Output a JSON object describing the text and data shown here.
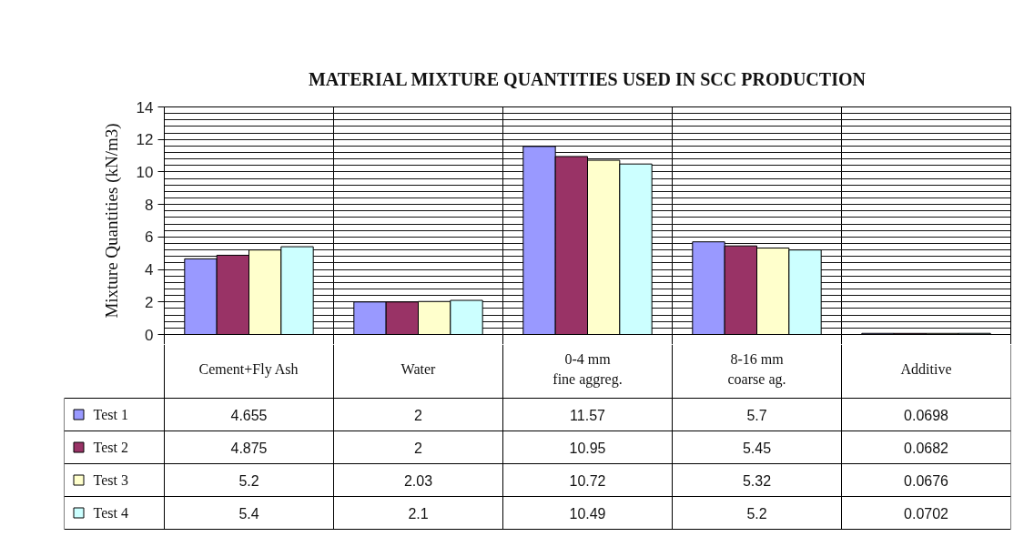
{
  "chart_data": {
    "type": "bar",
    "title": "MATERIAL MIXTURE QUANTITIES USED IN SCC PRODUCTION",
    "ylabel": "Mixture Quantities (kN/m3)",
    "categories": [
      "Cement+Fly Ash",
      "Water",
      "0-4 mm\nfine aggreg.",
      "8-16 mm\ncoarse ag.",
      "Additive"
    ],
    "series": [
      {
        "name": "Test 1",
        "color": "#9999ff",
        "values": [
          4.655,
          2,
          11.57,
          5.7,
          0.0698
        ]
      },
      {
        "name": "Test 2",
        "color": "#993366",
        "values": [
          4.875,
          2,
          10.95,
          5.45,
          0.0682
        ]
      },
      {
        "name": "Test 3",
        "color": "#ffffcc",
        "values": [
          5.2,
          2.03,
          10.72,
          5.32,
          0.0676
        ]
      },
      {
        "name": "Test 4",
        "color": "#ccffff",
        "values": [
          5.4,
          2.1,
          10.49,
          5.2,
          0.0702
        ]
      }
    ],
    "ylim": [
      0,
      14
    ],
    "yticks": [
      0,
      {
        "value": 0.4,
        "label": null
      },
      {
        "value": 0.8,
        "label": null
      },
      {
        "value": 1.2,
        "label": null
      },
      {
        "value": 1.6,
        "label": null
      },
      2,
      {
        "value": 2.4,
        "label": null
      },
      {
        "value": 2.8,
        "label": null
      },
      {
        "value": 3.2,
        "label": null
      },
      {
        "value": 3.6,
        "label": null
      },
      4,
      {
        "value": 4.4,
        "label": null
      },
      {
        "value": 4.8,
        "label": null
      },
      {
        "value": 5.2,
        "label": null
      },
      {
        "value": 5.6,
        "label": null
      },
      6,
      {
        "value": 6.4,
        "label": null
      },
      {
        "value": 6.8,
        "label": null
      },
      {
        "value": 7.2,
        "label": null
      },
      {
        "value": 7.6,
        "label": null
      },
      8,
      {
        "value": 8.4,
        "label": null
      },
      {
        "value": 8.8,
        "label": null
      },
      {
        "value": 9.2,
        "label": null
      },
      {
        "value": 9.6,
        "label": null
      },
      10,
      {
        "value": 10.4,
        "label": null
      },
      {
        "value": 10.8,
        "label": null
      },
      {
        "value": 11.2,
        "label": null
      },
      {
        "value": 11.6,
        "label": null
      },
      12,
      {
        "value": 12.4,
        "label": null
      },
      {
        "value": 12.8,
        "label": null
      },
      {
        "value": 13.2,
        "label": null
      },
      {
        "value": 13.6,
        "label": null
      },
      14
    ],
    "grid": true,
    "legend": "bottom",
    "data_labels": true
  }
}
